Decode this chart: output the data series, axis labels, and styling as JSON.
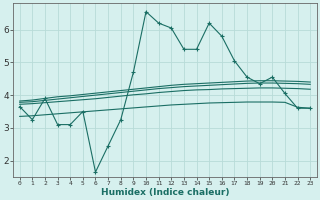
{
  "xlabel": "Humidex (Indice chaleur)",
  "background_color": "#d6f0ee",
  "grid_color": "#b8dbd8",
  "line_color": "#1a6e64",
  "xlim": [
    -0.5,
    23.5
  ],
  "ylim": [
    1.5,
    6.8
  ],
  "yticks": [
    2,
    3,
    4,
    5,
    6
  ],
  "xticks": [
    0,
    1,
    2,
    3,
    4,
    5,
    6,
    7,
    8,
    9,
    10,
    11,
    12,
    13,
    14,
    15,
    16,
    17,
    18,
    19,
    20,
    21,
    22,
    23
  ],
  "line1_x": [
    0,
    1,
    2,
    3,
    4,
    5,
    6,
    7,
    8,
    9,
    10,
    11,
    12,
    13,
    14,
    15,
    16,
    17,
    18,
    19,
    20,
    21,
    22,
    23
  ],
  "line1_y": [
    3.65,
    3.25,
    3.9,
    3.1,
    3.1,
    3.5,
    1.65,
    2.45,
    3.25,
    4.7,
    6.55,
    6.2,
    6.05,
    5.4,
    5.4,
    6.2,
    5.8,
    5.05,
    4.55,
    4.35,
    4.55,
    4.05,
    3.6,
    3.6
  ],
  "line2_x": [
    0,
    1,
    2,
    3,
    4,
    5,
    6,
    7,
    8,
    9,
    10,
    11,
    12,
    13,
    14,
    15,
    16,
    17,
    18,
    19,
    20,
    21,
    22,
    23
  ],
  "line2_y": [
    3.82,
    3.85,
    3.9,
    3.95,
    3.98,
    4.02,
    4.06,
    4.1,
    4.14,
    4.18,
    4.22,
    4.26,
    4.3,
    4.33,
    4.35,
    4.37,
    4.39,
    4.41,
    4.43,
    4.44,
    4.44,
    4.43,
    4.42,
    4.4
  ],
  "line3_x": [
    0,
    1,
    2,
    3,
    4,
    5,
    6,
    7,
    8,
    9,
    10,
    11,
    12,
    13,
    14,
    15,
    16,
    17,
    18,
    19,
    20,
    21,
    22,
    23
  ],
  "line3_y": [
    3.78,
    3.8,
    3.84,
    3.88,
    3.92,
    3.96,
    4.0,
    4.04,
    4.08,
    4.12,
    4.16,
    4.2,
    4.23,
    4.26,
    4.28,
    4.3,
    4.32,
    4.34,
    4.36,
    4.37,
    4.37,
    4.36,
    4.35,
    4.33
  ],
  "line4_x": [
    0,
    1,
    2,
    3,
    4,
    5,
    6,
    7,
    8,
    9,
    10,
    11,
    12,
    13,
    14,
    15,
    16,
    17,
    18,
    19,
    20,
    21,
    22,
    23
  ],
  "line4_y": [
    3.72,
    3.74,
    3.77,
    3.8,
    3.83,
    3.86,
    3.89,
    3.93,
    3.97,
    4.01,
    4.04,
    4.08,
    4.11,
    4.14,
    4.16,
    4.17,
    4.19,
    4.2,
    4.21,
    4.22,
    4.22,
    4.21,
    4.2,
    4.18
  ],
  "line5_x": [
    0,
    1,
    2,
    3,
    4,
    5,
    6,
    7,
    8,
    9,
    10,
    11,
    12,
    13,
    14,
    15,
    16,
    17,
    18,
    19,
    20,
    21,
    22,
    23
  ],
  "line5_y": [
    3.35,
    3.37,
    3.4,
    3.43,
    3.46,
    3.49,
    3.52,
    3.55,
    3.58,
    3.61,
    3.64,
    3.67,
    3.7,
    3.72,
    3.74,
    3.76,
    3.77,
    3.78,
    3.79,
    3.79,
    3.79,
    3.78,
    3.63,
    3.6
  ]
}
